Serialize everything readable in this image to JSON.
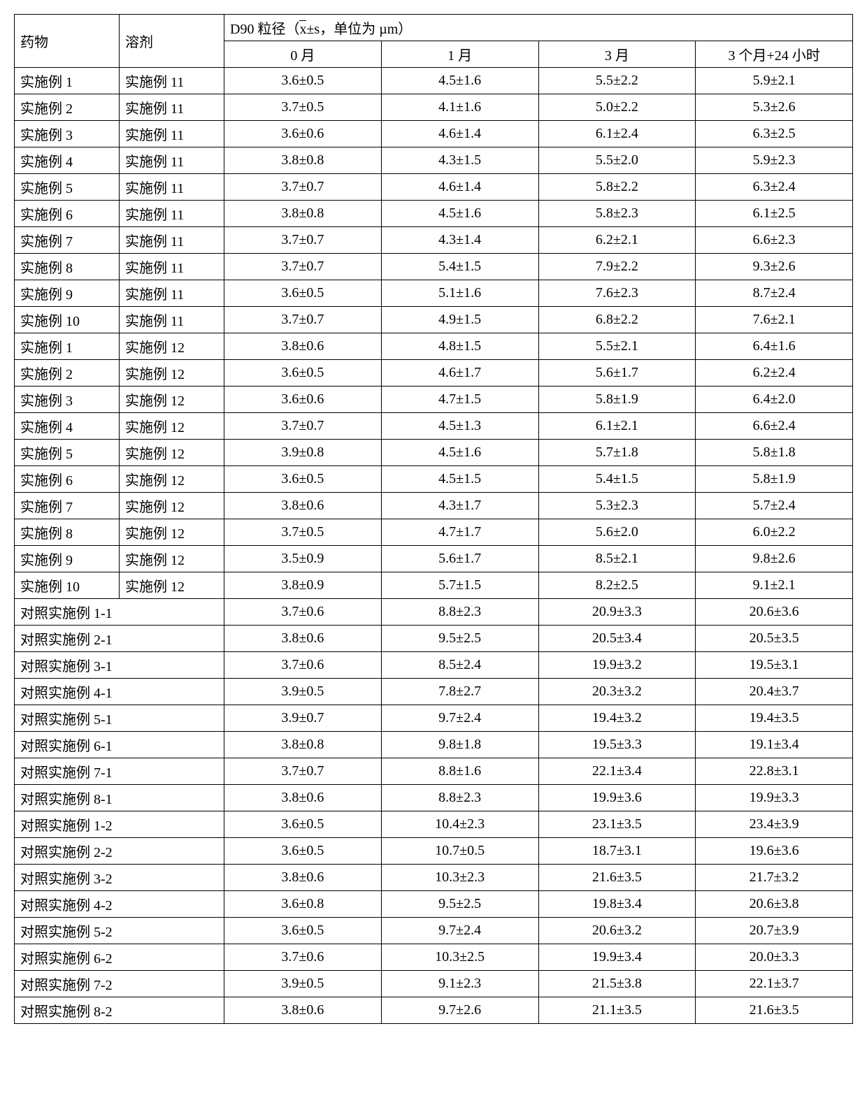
{
  "header": {
    "drug": "药物",
    "solvent": "溶剂",
    "d90_prefix": "D90 粒径（",
    "xbar": "x",
    "d90_suffix": "±s，单位为 µm）",
    "cols": [
      "0 月",
      "1 月",
      "3 月",
      "3 个月+24 小时"
    ]
  },
  "rows_ds": [
    {
      "drug": "实施例 1",
      "solvent": "实施例 11",
      "v": [
        "3.6±0.5",
        "4.5±1.6",
        "5.5±2.2",
        "5.9±2.1"
      ]
    },
    {
      "drug": "实施例 2",
      "solvent": "实施例 11",
      "v": [
        "3.7±0.5",
        "4.1±1.6",
        "5.0±2.2",
        "5.3±2.6"
      ]
    },
    {
      "drug": "实施例 3",
      "solvent": "实施例 11",
      "v": [
        "3.6±0.6",
        "4.6±1.4",
        "6.1±2.4",
        "6.3±2.5"
      ]
    },
    {
      "drug": "实施例 4",
      "solvent": "实施例 11",
      "v": [
        "3.8±0.8",
        "4.3±1.5",
        "5.5±2.0",
        "5.9±2.3"
      ]
    },
    {
      "drug": "实施例 5",
      "solvent": "实施例 11",
      "v": [
        "3.7±0.7",
        "4.6±1.4",
        "5.8±2.2",
        "6.3±2.4"
      ]
    },
    {
      "drug": "实施例 6",
      "solvent": "实施例 11",
      "v": [
        "3.8±0.8",
        "4.5±1.6",
        "5.8±2.3",
        "6.1±2.5"
      ]
    },
    {
      "drug": "实施例 7",
      "solvent": "实施例 11",
      "v": [
        "3.7±0.7",
        "4.3±1.4",
        "6.2±2.1",
        "6.6±2.3"
      ]
    },
    {
      "drug": "实施例 8",
      "solvent": "实施例 11",
      "v": [
        "3.7±0.7",
        "5.4±1.5",
        "7.9±2.2",
        "9.3±2.6"
      ]
    },
    {
      "drug": "实施例 9",
      "solvent": "实施例 11",
      "v": [
        "3.6±0.5",
        "5.1±1.6",
        "7.6±2.3",
        "8.7±2.4"
      ]
    },
    {
      "drug": "实施例 10",
      "solvent": "实施例 11",
      "v": [
        "3.7±0.7",
        "4.9±1.5",
        "6.8±2.2",
        "7.6±2.1"
      ]
    },
    {
      "drug": "实施例 1",
      "solvent": "实施例 12",
      "v": [
        "3.8±0.6",
        "4.8±1.5",
        "5.5±2.1",
        "6.4±1.6"
      ]
    },
    {
      "drug": "实施例 2",
      "solvent": "实施例 12",
      "v": [
        "3.6±0.5",
        "4.6±1.7",
        "5.6±1.7",
        "6.2±2.4"
      ]
    },
    {
      "drug": "实施例 3",
      "solvent": "实施例 12",
      "v": [
        "3.6±0.6",
        "4.7±1.5",
        "5.8±1.9",
        "6.4±2.0"
      ]
    },
    {
      "drug": "实施例 4",
      "solvent": "实施例 12",
      "v": [
        "3.7±0.7",
        "4.5±1.3",
        "6.1±2.1",
        "6.6±2.4"
      ]
    },
    {
      "drug": "实施例 5",
      "solvent": "实施例 12",
      "v": [
        "3.9±0.8",
        "4.5±1.6",
        "5.7±1.8",
        "5.8±1.8"
      ]
    },
    {
      "drug": "实施例 6",
      "solvent": "实施例 12",
      "v": [
        "3.6±0.5",
        "4.5±1.5",
        "5.4±1.5",
        "5.8±1.9"
      ]
    },
    {
      "drug": "实施例 7",
      "solvent": "实施例 12",
      "v": [
        "3.8±0.6",
        "4.3±1.7",
        "5.3±2.3",
        "5.7±2.4"
      ]
    },
    {
      "drug": "实施例 8",
      "solvent": "实施例 12",
      "v": [
        "3.7±0.5",
        "4.7±1.7",
        "5.6±2.0",
        "6.0±2.2"
      ]
    },
    {
      "drug": "实施例 9",
      "solvent": "实施例 12",
      "v": [
        "3.5±0.9",
        "5.6±1.7",
        "8.5±2.1",
        "9.8±2.6"
      ]
    },
    {
      "drug": "实施例 10",
      "solvent": "实施例 12",
      "v": [
        "3.8±0.9",
        "5.7±1.5",
        "8.2±2.5",
        "9.1±2.1"
      ]
    }
  ],
  "rows_merged": [
    {
      "label": "对照实施例 1-1",
      "v": [
        "3.7±0.6",
        "8.8±2.3",
        "20.9±3.3",
        "20.6±3.6"
      ]
    },
    {
      "label": "对照实施例 2-1",
      "v": [
        "3.8±0.6",
        "9.5±2.5",
        "20.5±3.4",
        "20.5±3.5"
      ]
    },
    {
      "label": "对照实施例 3-1",
      "v": [
        "3.7±0.6",
        "8.5±2.4",
        "19.9±3.2",
        "19.5±3.1"
      ]
    },
    {
      "label": "对照实施例 4-1",
      "v": [
        "3.9±0.5",
        "7.8±2.7",
        "20.3±3.2",
        "20.4±3.7"
      ]
    },
    {
      "label": "对照实施例 5-1",
      "v": [
        "3.9±0.7",
        "9.7±2.4",
        "19.4±3.2",
        "19.4±3.5"
      ]
    },
    {
      "label": "对照实施例 6-1",
      "v": [
        "3.8±0.8",
        "9.8±1.8",
        "19.5±3.3",
        "19.1±3.4"
      ]
    },
    {
      "label": "对照实施例 7-1",
      "v": [
        "3.7±0.7",
        "8.8±1.6",
        "22.1±3.4",
        "22.8±3.1"
      ]
    },
    {
      "label": "对照实施例 8-1",
      "v": [
        "3.8±0.6",
        "8.8±2.3",
        "19.9±3.6",
        "19.9±3.3"
      ]
    },
    {
      "label": "对照实施例 1-2",
      "v": [
        "3.6±0.5",
        "10.4±2.3",
        "23.1±3.5",
        "23.4±3.9"
      ]
    },
    {
      "label": "对照实施例 2-2",
      "v": [
        "3.6±0.5",
        "10.7±0.5",
        "18.7±3.1",
        "19.6±3.6"
      ]
    },
    {
      "label": "对照实施例 3-2",
      "v": [
        "3.8±0.6",
        "10.3±2.3",
        "21.6±3.5",
        "21.7±3.2"
      ]
    },
    {
      "label": "对照实施例 4-2",
      "v": [
        "3.6±0.8",
        "9.5±2.5",
        "19.8±3.4",
        "20.6±3.8"
      ]
    },
    {
      "label": "对照实施例 5-2",
      "v": [
        "3.6±0.5",
        "9.7±2.4",
        "20.6±3.2",
        "20.7±3.9"
      ]
    },
    {
      "label": "对照实施例 6-2",
      "v": [
        "3.7±0.6",
        "10.3±2.5",
        "19.9±3.4",
        "20.0±3.3"
      ]
    },
    {
      "label": "对照实施例 7-2",
      "v": [
        "3.9±0.5",
        "9.1±2.3",
        "21.5±3.8",
        "22.1±3.7"
      ]
    },
    {
      "label": "对照实施例 8-2",
      "v": [
        "3.8±0.6",
        "9.7±2.6",
        "21.1±3.5",
        "21.6±3.5"
      ]
    }
  ]
}
